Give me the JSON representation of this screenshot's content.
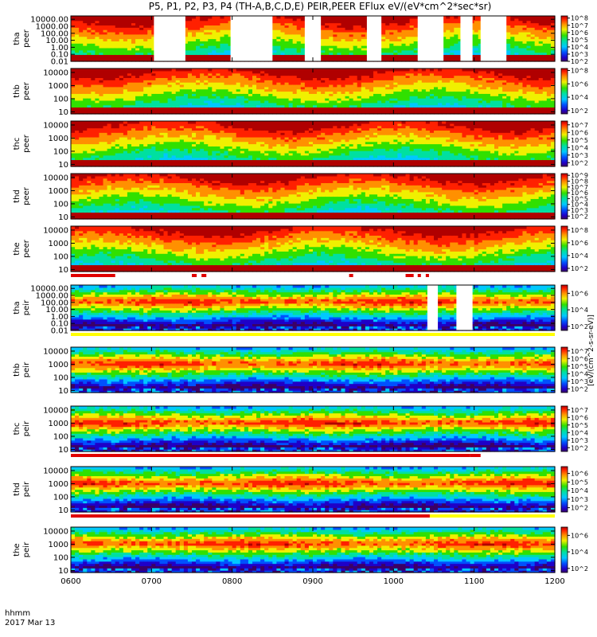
{
  "chart_data": {
    "type": "heatmap",
    "title": "P5, P1, P2, P3, P4 (TH-A,B,C,D,E) PEIR,PEER EFlux eV/(eV*cm^2*sec*sr)",
    "time_axis": {
      "label_line1": "hhmm",
      "label_line2": "2017 Mar 13",
      "ticks": [
        "0600",
        "0700",
        "0800",
        "0900",
        "1000",
        "1100",
        "1200"
      ],
      "range_hours": [
        6,
        12
      ]
    },
    "colorbar_label_electron": "[eV/(cm^2-s-sr-eV)]",
    "colorbar_label_ion": "[eV/(cm^2-s-sr-eV)]",
    "panels": [
      {
        "id": "tha_peer",
        "label_top": "tha",
        "label_bottom": "peer",
        "ylim": [
          0.01,
          30000
        ],
        "yticks": [
          "10000.00",
          "1000.00",
          "100.00",
          "10.00",
          "1.00",
          "0.10",
          "0.01"
        ],
        "cb_ticks": [
          "10^8",
          "10^7",
          "10^6",
          "10^5",
          "10^4",
          "10^3",
          "10^2"
        ],
        "cb_range": [
          2,
          8.3
        ],
        "kind": "electron",
        "gaps": [
          [
            7.03,
            7.42
          ],
          [
            7.98,
            8.5
          ],
          [
            8.9,
            9.1
          ],
          [
            9.67,
            9.85
          ],
          [
            10.3,
            10.62
          ],
          [
            10.83,
            10.98
          ],
          [
            11.08,
            11.4
          ]
        ]
      },
      {
        "id": "thb_peer",
        "label_top": "thb",
        "label_bottom": "peer",
        "ylim": [
          7,
          20000
        ],
        "yticks": [
          "10000",
          "1000",
          "100",
          "10"
        ],
        "cb_ticks": [
          "10^8",
          "10^6",
          "10^4",
          "10^2"
        ],
        "cb_range": [
          1.5,
          8.3
        ],
        "kind": "electron",
        "gaps": []
      },
      {
        "id": "thc_peer",
        "label_top": "thc",
        "label_bottom": "peer",
        "ylim": [
          7,
          20000
        ],
        "yticks": [
          "10000",
          "1000",
          "100",
          "10"
        ],
        "cb_ticks": [
          "10^7",
          "10^6",
          "10^5",
          "10^4",
          "10^3",
          "10^2"
        ],
        "cb_range": [
          1.5,
          7.5
        ],
        "kind": "electron",
        "gaps": []
      },
      {
        "id": "thd_peer",
        "label_top": "thd",
        "label_bottom": "peer",
        "ylim": [
          7,
          20000
        ],
        "yticks": [
          "10000",
          "1000",
          "100",
          "10"
        ],
        "cb_ticks": [
          "10^9",
          "10^8",
          "10^7",
          "10^6",
          "10^5",
          "10^4",
          "10^3",
          "10^2"
        ],
        "cb_range": [
          1.5,
          9.3
        ],
        "kind": "electron",
        "gaps": []
      },
      {
        "id": "the_peer",
        "label_top": "the",
        "label_bottom": "peer",
        "ylim": [
          7,
          20000
        ],
        "yticks": [
          "10000",
          "1000",
          "100",
          "10"
        ],
        "cb_ticks": [
          "10^8",
          "10^6",
          "10^4",
          "10^2"
        ],
        "cb_range": [
          1.5,
          8.6
        ],
        "kind": "electron",
        "gaps": []
      },
      {
        "id": "tha_peir",
        "label_top": "tha",
        "label_bottom": "peir",
        "ylim": [
          0.01,
          30000
        ],
        "yticks": [
          "10000.00",
          "1000.00",
          "100.00",
          "10.00",
          "1.00",
          "0.10",
          "0.01"
        ],
        "cb_ticks": [
          "10^6",
          "10^4",
          "10^2"
        ],
        "cb_range": [
          1.5,
          7
        ],
        "kind": "ion",
        "gaps": [
          [
            10.42,
            10.55
          ],
          [
            10.78,
            10.98
          ]
        ]
      },
      {
        "id": "thb_peir",
        "label_top": "thb",
        "label_bottom": "peir",
        "ylim": [
          7,
          20000
        ],
        "yticks": [
          "10000",
          "1000",
          "100",
          "10"
        ],
        "cb_ticks": [
          "10^7",
          "10^6",
          "10^5",
          "10^4",
          "10^3",
          "10^2"
        ],
        "cb_range": [
          1.5,
          7.5
        ],
        "kind": "ion",
        "gaps": []
      },
      {
        "id": "thc_peir",
        "label_top": "thc",
        "label_bottom": "peir",
        "ylim": [
          7,
          20000
        ],
        "yticks": [
          "10000",
          "1000",
          "100",
          "10"
        ],
        "cb_ticks": [
          "10^7",
          "10^6",
          "10^5",
          "10^4",
          "10^3",
          "10^2"
        ],
        "cb_range": [
          1.5,
          7.5
        ],
        "kind": "ion",
        "gaps": []
      },
      {
        "id": "thd_peir",
        "label_top": "thd",
        "label_bottom": "peir",
        "ylim": [
          7,
          20000
        ],
        "yticks": [
          "10000",
          "1000",
          "100",
          "10"
        ],
        "cb_ticks": [
          "10^6",
          "10^5",
          "10^4",
          "10^3",
          "10^2"
        ],
        "cb_range": [
          1.5,
          6.8
        ],
        "kind": "ion",
        "gaps": []
      },
      {
        "id": "the_peir",
        "label_top": "the",
        "label_bottom": "peir",
        "ylim": [
          7,
          20000
        ],
        "yticks": [
          "10000",
          "1000",
          "100",
          "10"
        ],
        "cb_ticks": [
          "10^6",
          "10^4",
          "10^2"
        ],
        "cb_range": [
          1.5,
          7
        ],
        "kind": "ion",
        "gaps": []
      }
    ],
    "mode_bars": [
      {
        "after_panel": 4,
        "segments": [
          {
            "from": 6.0,
            "to": 6.55,
            "color": "#e00000"
          },
          {
            "from": 7.5,
            "to": 7.56,
            "color": "#e00000"
          },
          {
            "from": 7.62,
            "to": 7.68,
            "color": "#e00000"
          },
          {
            "from": 9.45,
            "to": 9.5,
            "color": "#e00000"
          },
          {
            "from": 10.15,
            "to": 10.25,
            "color": "#e00000"
          },
          {
            "from": 10.3,
            "to": 10.34,
            "color": "#e00000"
          },
          {
            "from": 10.4,
            "to": 10.44,
            "color": "#e00000"
          }
        ]
      },
      {
        "after_panel": 5,
        "segments": [
          {
            "from": 6.0,
            "to": 12.0,
            "color": "#ffff00"
          }
        ]
      },
      {
        "after_panel": 7,
        "segments": [
          {
            "from": 6.0,
            "to": 10.95,
            "color": "#e00000"
          },
          {
            "from": 10.95,
            "to": 11.08,
            "color": "#e00000"
          }
        ]
      },
      {
        "after_panel": 8,
        "segments": [
          {
            "from": 6.0,
            "to": 10.45,
            "color": "#e00000"
          },
          {
            "from": 10.45,
            "to": 12.0,
            "color": "#ffff00"
          }
        ]
      }
    ]
  }
}
